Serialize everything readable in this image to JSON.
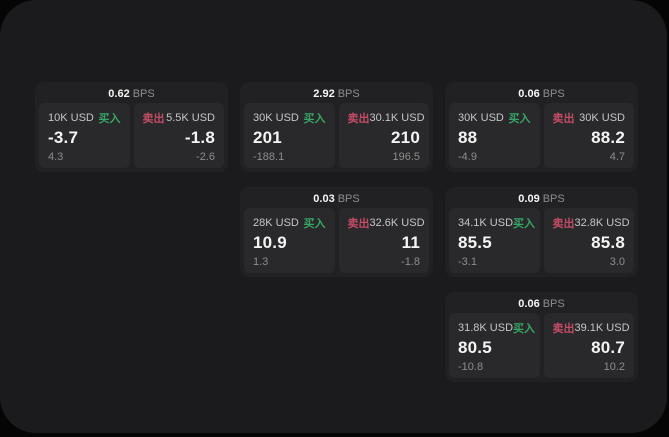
{
  "page": {
    "background": "#050505",
    "panel_background": "#1b1b1d"
  },
  "colors": {
    "card_bg": "#212123",
    "subcard_bg": "#29292b",
    "buy_accent": "#36a566",
    "sell_accent": "#c24b66",
    "value_color": "#f4f4f4",
    "label_color": "#c6c6c6",
    "muted_color": "#8d8d8d"
  },
  "labels": {
    "bps_unit": "BPS",
    "buy": "买入",
    "sell": "卖出"
  },
  "cards": [
    {
      "row": 1,
      "col": 1,
      "bps": "0.62",
      "buy_amount": "10K USD",
      "buy_value": "-3.7",
      "buy_delta": "4.3",
      "sell_amount": "5.5K USD",
      "sell_value": "-1.8",
      "sell_delta": "-2.6"
    },
    {
      "row": 1,
      "col": 2,
      "bps": "2.92",
      "buy_amount": "30K USD",
      "buy_value": "201",
      "buy_delta": "-188.1",
      "sell_amount": "30.1K USD",
      "sell_value": "210",
      "sell_delta": "196.5"
    },
    {
      "row": 1,
      "col": 3,
      "bps": "0.06",
      "buy_amount": "30K USD",
      "buy_value": "88",
      "buy_delta": "-4.9",
      "sell_amount": "30K USD",
      "sell_value": "88.2",
      "sell_delta": "4.7"
    },
    {
      "row": 2,
      "col": 2,
      "bps": "0.03",
      "buy_amount": "28K USD",
      "buy_value": "10.9",
      "buy_delta": "1.3",
      "sell_amount": "32.6K USD",
      "sell_value": "11",
      "sell_delta": "-1.8"
    },
    {
      "row": 2,
      "col": 3,
      "bps": "0.09",
      "buy_amount": "34.1K USD",
      "buy_value": "85.5",
      "buy_delta": "-3.1",
      "sell_amount": "32.8K USD",
      "sell_value": "85.8",
      "sell_delta": "3.0"
    },
    {
      "row": 3,
      "col": 3,
      "bps": "0.06",
      "buy_amount": "31.8K USD",
      "buy_value": "80.5",
      "buy_delta": "-10.8",
      "sell_amount": "39.1K USD",
      "sell_value": "80.7",
      "sell_delta": "10.2"
    }
  ]
}
